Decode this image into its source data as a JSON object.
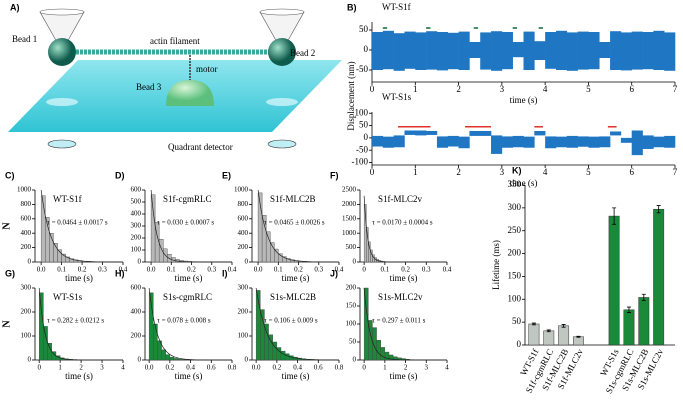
{
  "diagram": {
    "label": "A)",
    "bead1": "Bead 1",
    "bead2": "Bead 2",
    "bead3": "Bead 3",
    "actin": "actin filament",
    "motor": "motor",
    "detector": "Quadrant detector"
  },
  "chart_data": [
    {
      "type": "trace",
      "label": "B)",
      "title": "WT-S1f",
      "xlabel": "time (s)",
      "ylabel": "Displacement (nm)",
      "color": "#1f77c4",
      "x": [
        0,
        0.25,
        0.5,
        0.75,
        1,
        1.25,
        1.5,
        1.75,
        2,
        2.25,
        2.5,
        2.75,
        3,
        3.25,
        3.5,
        3.75,
        4,
        4.25,
        4.5,
        4.75,
        5,
        5.25,
        5.5,
        5.75,
        6,
        6.25,
        6.5,
        6.75
      ],
      "high": [
        45,
        48,
        42,
        46,
        44,
        47,
        45,
        43,
        46,
        20,
        44,
        47,
        45,
        20,
        46,
        22,
        45,
        48,
        44,
        46,
        45,
        20,
        47,
        44,
        46,
        45,
        48,
        44
      ],
      "low": [
        -50,
        -48,
        -52,
        -47,
        -50,
        -49,
        -51,
        -48,
        -50,
        -20,
        -49,
        -52,
        -48,
        -18,
        -50,
        -25,
        -47,
        -50,
        -52,
        -49,
        -48,
        -20,
        -50,
        -51,
        -49,
        -48,
        -50,
        -52
      ],
      "events": {
        "color": "#0a6a3a",
        "start": [
          0.25,
          1.25,
          2.35,
          3.25,
          3.85
        ],
        "end": [
          0.35,
          1.35,
          2.45,
          3.35,
          3.95
        ],
        "level": [
          55,
          55,
          55,
          55,
          55
        ]
      },
      "xlim": [
        0,
        7
      ],
      "xticks": [
        0,
        1,
        2,
        3,
        4,
        5,
        6,
        7
      ],
      "ylim": [
        -80,
        70
      ],
      "yticks": [
        -50,
        0,
        50
      ]
    },
    {
      "type": "trace",
      "title": "WT-S1s",
      "xlabel": "time (s)",
      "color": "#1f77c4",
      "x": [
        0,
        0.25,
        0.5,
        0.75,
        1,
        1.25,
        1.5,
        1.75,
        2,
        2.25,
        2.5,
        2.75,
        3,
        3.25,
        3.5,
        3.75,
        4,
        4.25,
        4.5,
        4.75,
        5,
        5.25,
        5.5,
        5.75,
        6,
        6.25,
        6.5,
        6.75
      ],
      "high": [
        8,
        5,
        10,
        30,
        30,
        28,
        6,
        8,
        5,
        28,
        28,
        10,
        6,
        8,
        5,
        28,
        6,
        5,
        8,
        6,
        5,
        6,
        26,
        0,
        30,
        10,
        5,
        8
      ],
      "low": [
        -35,
        -40,
        -38,
        12,
        10,
        12,
        -40,
        -35,
        -42,
        8,
        8,
        -65,
        -40,
        -38,
        -40,
        10,
        -42,
        -38,
        -40,
        -36,
        -40,
        -38,
        10,
        -20,
        -70,
        -45,
        -38,
        -40
      ],
      "events": {
        "color": "#e0302a",
        "start": [
          0.6,
          2.15,
          3.75,
          5.45
        ],
        "end": [
          1.35,
          2.75,
          3.95,
          5.65
        ],
        "level": [
          45,
          45,
          45,
          45
        ]
      },
      "xlim": [
        0,
        7
      ],
      "xticks": [
        0,
        1,
        2,
        3,
        4,
        5,
        6,
        7
      ],
      "ylim": [
        -110,
        105
      ],
      "yticks": [
        -100,
        -50,
        0,
        50,
        100
      ]
    },
    {
      "type": "histogram",
      "label": "C)",
      "title": "WT-S1f",
      "annotation": "τ = 0.0464 ± 0.0017 s",
      "xlabel": "time (s)",
      "ylabel": "N",
      "color": "#b8b8b8",
      "bins": [
        0,
        0.02,
        0.04,
        0.06,
        0.08,
        0.1,
        0.12,
        0.14,
        0.16,
        0.18,
        0.2,
        0.22,
        0.24,
        0.26,
        0.28,
        0.3
      ],
      "counts": [
        920,
        620,
        400,
        260,
        170,
        110,
        70,
        45,
        30,
        20,
        12,
        8,
        5,
        3,
        2
      ],
      "fit_amplitude": 1000,
      "fit_tau": 0.0464,
      "xlim": [
        -0.03,
        0.4
      ],
      "xticks": [
        {
          "value": 0,
          "label": "0.0"
        },
        0.1,
        0.2,
        0.3,
        0.4
      ],
      "ylim": [
        0,
        1000
      ],
      "yticks": [
        0,
        200,
        400,
        600,
        800,
        1000
      ]
    },
    {
      "type": "histogram",
      "label": "D)",
      "title": "S1f-cgmRLC",
      "annotation": "τ = 0.030 ± 0.0007 s",
      "xlabel": "time (s)",
      "color": "#b8b8b8",
      "bins": [
        0,
        0.02,
        0.04,
        0.06,
        0.08,
        0.1,
        0.12,
        0.14,
        0.16,
        0.18,
        0.2,
        0.22,
        0.24
      ],
      "counts": [
        560,
        330,
        190,
        110,
        65,
        38,
        22,
        13,
        8,
        5,
        3,
        2
      ],
      "fit_amplitude": 600,
      "fit_tau": 0.03,
      "xlim": [
        -0.03,
        0.4
      ],
      "xticks": [
        {
          "value": 0,
          "label": "0.0"
        },
        0.1,
        0.2,
        0.3,
        0.4
      ],
      "ylim": [
        0,
        600
      ],
      "yticks": [
        0,
        100,
        200,
        300,
        400,
        500,
        600
      ]
    },
    {
      "type": "histogram",
      "label": "E)",
      "title": "S1f-MLC2B",
      "annotation": "τ = 0.0465 ± 0.0026 s",
      "xlabel": "time (s)",
      "color": "#b8b8b8",
      "bins": [
        0,
        0.02,
        0.04,
        0.06,
        0.08,
        0.1,
        0.12,
        0.14,
        0.16,
        0.18,
        0.2,
        0.22,
        0.24,
        0.26,
        0.28,
        0.3
      ],
      "counts": [
        960,
        650,
        420,
        270,
        180,
        115,
        75,
        48,
        31,
        20,
        13,
        8,
        5,
        3,
        2
      ],
      "fit_amplitude": 1000,
      "fit_tau": 0.0465,
      "xlim": [
        -0.03,
        0.4
      ],
      "xticks": [
        {
          "value": 0,
          "label": "0.0"
        },
        0.1,
        0.2,
        0.3,
        0.4
      ],
      "ylim": [
        0,
        1000
      ],
      "yticks": [
        0,
        200,
        400,
        600,
        800,
        1000
      ]
    },
    {
      "type": "histogram",
      "label": "F)",
      "title": "S1f-MLC2v",
      "annotation": "τ = 0.0170 ± 0.0004 s",
      "xlabel": "time (s)",
      "color": "#b8b8b8",
      "bins": [
        0,
        0.01,
        0.02,
        0.03,
        0.04,
        0.05,
        0.06,
        0.07,
        0.08,
        0.09,
        0.1,
        0.11,
        0.12,
        0.13
      ],
      "counts": [
        2000,
        1200,
        700,
        420,
        250,
        150,
        90,
        55,
        33,
        20,
        12,
        7,
        4
      ],
      "fit_amplitude": 2300,
      "fit_tau": 0.017,
      "xlim": [
        -0.02,
        0.4
      ],
      "xticks": [
        0,
        0.1,
        0.2,
        0.3,
        0.4
      ],
      "ylim": [
        0,
        2500
      ],
      "yticks": [
        0,
        500,
        1000,
        1500,
        2000,
        2500
      ]
    },
    {
      "type": "histogram",
      "label": "G)",
      "title": "WT-S1s",
      "annotation": "τ = 0.282 ± 0.0212 s",
      "xlabel": "time (s)",
      "ylabel": "N",
      "color": "#1a8a3a",
      "bins": [
        0,
        0.2,
        0.4,
        0.6,
        0.8,
        1,
        1.2,
        1.4,
        1.6,
        1.8,
        2
      ],
      "counts": [
        280,
        140,
        70,
        35,
        18,
        9,
        5,
        3,
        2,
        1
      ],
      "fit_amplitude": 300,
      "fit_tau": 0.282,
      "xlim": [
        -0.2,
        4
      ],
      "xticks": [
        0,
        1,
        2,
        3,
        4
      ],
      "ylim": [
        0,
        300
      ],
      "yticks": [
        0,
        100,
        200,
        300
      ]
    },
    {
      "type": "histogram",
      "label": "H)",
      "title": "S1s-cgmRLC",
      "annotation": "τ = 0.078 ± 0.008 s",
      "xlabel": "time (s)",
      "color": "#1a8a3a",
      "bins": [
        0,
        0.04,
        0.08,
        0.12,
        0.16,
        0.2,
        0.24,
        0.28,
        0.32,
        0.36,
        0.4
      ],
      "counts": [
        560,
        300,
        160,
        85,
        45,
        24,
        13,
        7,
        4,
        2
      ],
      "fit_amplitude": 600,
      "fit_tau": 0.078,
      "xlim": [
        -0.04,
        0.8
      ],
      "xticks": [
        {
          "value": 0,
          "label": "0.0"
        },
        0.2,
        0.4,
        0.6,
        0.8
      ],
      "ylim": [
        0,
        600
      ],
      "yticks": [
        0,
        200,
        400,
        600
      ]
    },
    {
      "type": "histogram",
      "label": "I)",
      "title": "S1s-MLC2B",
      "annotation": "τ = 0.106 ± 0.009 s",
      "xlabel": "time (s)",
      "color": "#1a8a3a",
      "bins": [
        0,
        0.04,
        0.08,
        0.12,
        0.16,
        0.2,
        0.24,
        0.28,
        0.32,
        0.36,
        0.4,
        0.44,
        0.48,
        0.52,
        0.56
      ],
      "counts": [
        290,
        210,
        150,
        105,
        75,
        52,
        37,
        26,
        18,
        12,
        8,
        5,
        3,
        2
      ],
      "fit_amplitude": 300,
      "fit_tau": 0.106,
      "xlim": [
        -0.04,
        0.8
      ],
      "xticks": [
        {
          "value": 0,
          "label": "0.0"
        },
        0.2,
        0.4,
        0.6,
        0.8
      ],
      "ylim": [
        0,
        300
      ],
      "yticks": [
        0,
        100,
        200,
        300
      ]
    },
    {
      "type": "histogram",
      "label": "J)",
      "title": "S1s-MLC2v",
      "annotation": "τ = 0.297 ± 0.011 s",
      "xlabel": "time (s)",
      "color": "#1a8a3a",
      "bins": [
        0,
        0.2,
        0.4,
        0.6,
        0.8,
        1,
        1.2,
        1.4,
        1.6,
        1.8,
        2,
        2.2,
        2.4
      ],
      "counts": [
        200,
        110,
        90,
        55,
        35,
        22,
        14,
        9,
        6,
        4,
        2,
        1
      ],
      "fit_amplitude": 200,
      "fit_tau": 0.297,
      "xlim": [
        -0.2,
        4
      ],
      "xticks": [
        0,
        1,
        2,
        3,
        4
      ],
      "ylim": [
        0,
        200
      ],
      "yticks": [
        0,
        50,
        100,
        150,
        200
      ]
    },
    {
      "type": "bar",
      "label": "K)",
      "ylabel": "Lifetime (ms)",
      "categories": [
        "WT-S1f",
        "S1f-cgmRLC",
        "S1f-MLC2B",
        "S1f-MLC2v",
        "WT-S1s",
        "S1s-cgmRLC",
        "S1s-MLC2B",
        "S1s-MLC2v"
      ],
      "values": [
        46,
        31,
        42,
        18,
        282,
        77,
        104,
        297
      ],
      "errors": [
        2,
        2,
        3,
        1,
        18,
        6,
        7,
        8
      ],
      "colors": [
        "#c0c6c0",
        "#c0c6c0",
        "#c0c6c0",
        "#c0c6c0",
        "#1a8a3a",
        "#1a8a3a",
        "#1a8a3a",
        "#1a8a3a"
      ],
      "ylim": [
        0,
        350
      ],
      "yticks": [
        0,
        50,
        100,
        150,
        200,
        250,
        300,
        350
      ]
    }
  ]
}
